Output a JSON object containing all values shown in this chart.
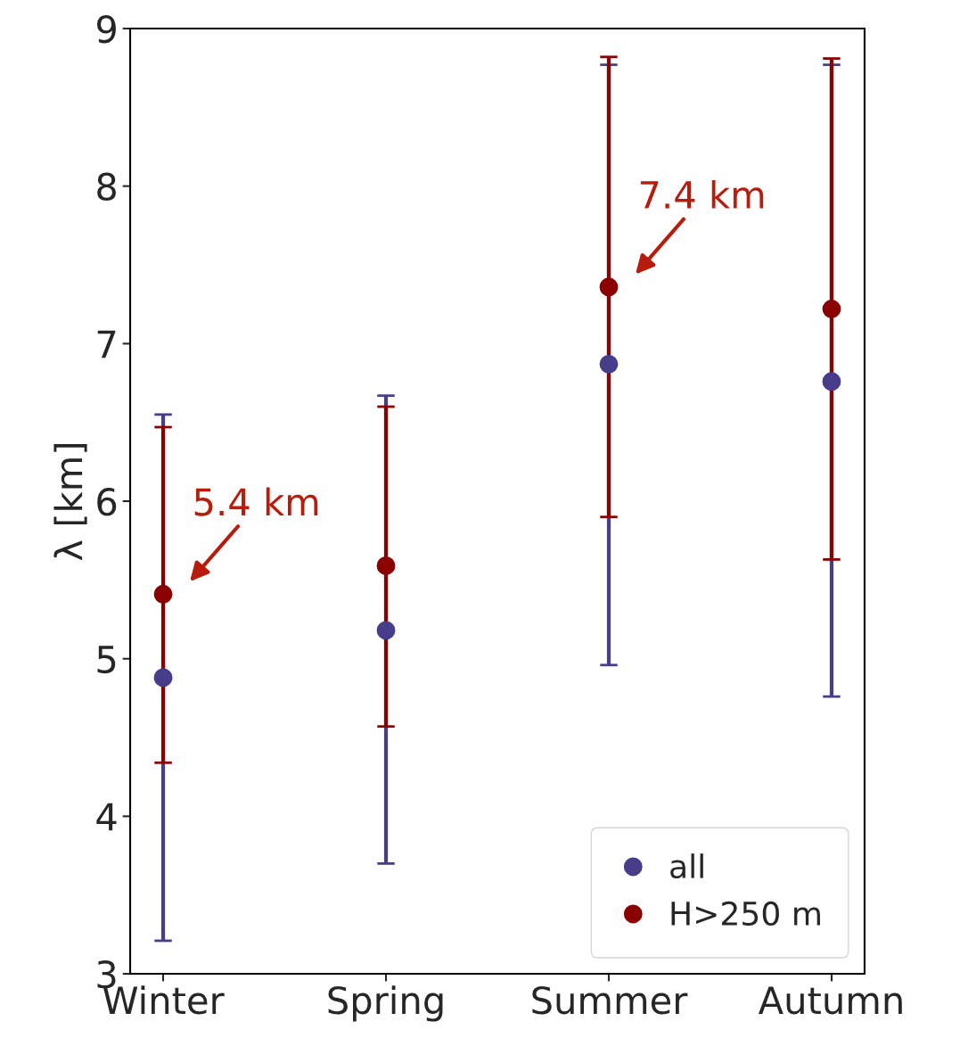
{
  "chart_data": {
    "type": "scatter",
    "ylabel": "λ [km]",
    "categories": [
      "Winter",
      "Spring",
      "Summer",
      "Autumn"
    ],
    "series": [
      {
        "name": "all",
        "color": "#483d8b",
        "values": [
          4.88,
          5.18,
          6.87,
          6.76
        ],
        "errors": [
          [
            3.21,
            6.55
          ],
          [
            3.7,
            6.67
          ],
          [
            4.96,
            8.77
          ],
          [
            4.76,
            8.77
          ]
        ]
      },
      {
        "name": "H>250 m",
        "color": "#8b0000",
        "values": [
          5.41,
          5.59,
          7.36,
          7.22
        ],
        "errors": [
          [
            4.34,
            6.47
          ],
          [
            4.57,
            6.6
          ],
          [
            5.9,
            8.82
          ],
          [
            5.63,
            8.81
          ]
        ]
      }
    ],
    "annotations": [
      {
        "text": "5.4 km",
        "x": "Winter",
        "y": 5.41
      },
      {
        "text": "7.4 km",
        "x": "Summer",
        "y": 7.36
      }
    ],
    "ylim": [
      3,
      9
    ],
    "yticks": [
      3,
      4,
      5,
      6,
      7,
      8,
      9
    ],
    "grid": false,
    "legend": "lower right",
    "marker": "circle"
  }
}
